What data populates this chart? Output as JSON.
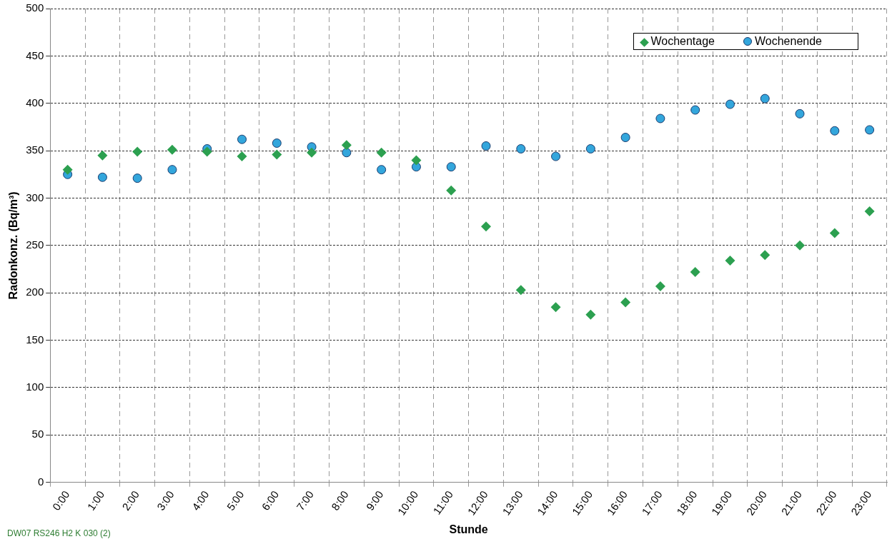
{
  "chart_data": {
    "type": "scatter",
    "xlabel": "Stunde",
    "ylabel": "Radonkonz. (Bq/m³)",
    "categories": [
      "0:00",
      "1:00",
      "2:00",
      "3:00",
      "4:00",
      "5:00",
      "6:00",
      "7:00",
      "8:00",
      "9:00",
      "10:00",
      "11:00",
      "12:00",
      "13:00",
      "14:00",
      "15:00",
      "16:00",
      "17:00",
      "18:00",
      "19:00",
      "20:00",
      "21:00",
      "22:00",
      "23:00"
    ],
    "series": [
      {
        "name": "Wochentage",
        "color": "#2ca050",
        "marker": "diamond",
        "values": [
          330,
          345,
          349,
          351,
          349,
          344,
          346,
          348,
          356,
          348,
          340,
          308,
          270,
          203,
          185,
          177,
          190,
          207,
          222,
          234,
          240,
          250,
          263,
          286
        ]
      },
      {
        "name": "Wochenende",
        "color": "#33a6dc",
        "marker": "circle",
        "values": [
          325,
          322,
          321,
          330,
          352,
          362,
          358,
          354,
          348,
          330,
          333,
          333,
          355,
          352,
          344,
          352,
          364,
          384,
          393,
          399,
          405,
          389,
          371,
          372
        ]
      }
    ],
    "ylim": [
      0,
      500
    ],
    "yticks": [
      0,
      50,
      100,
      150,
      200,
      250,
      300,
      350,
      400,
      450,
      500
    ],
    "grid": true,
    "legend": "top right",
    "annotations": [
      "DW07 RS246 H2 K 030 (2)"
    ]
  }
}
